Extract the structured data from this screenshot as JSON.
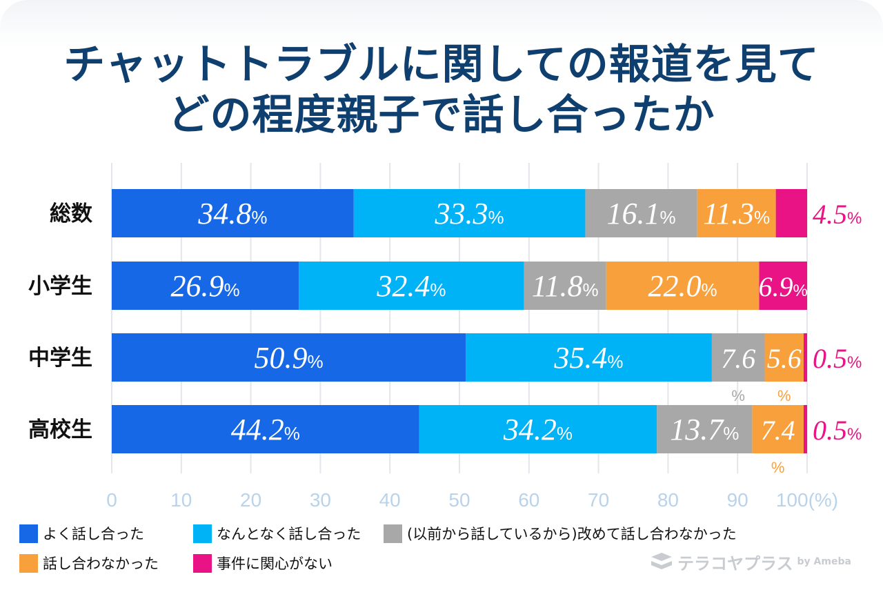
{
  "title_lines": [
    "チャットトラブルに関しての報道を見て",
    "どの程度親子で話し合ったか"
  ],
  "chart_data": {
    "type": "bar",
    "orientation": "horizontal",
    "stacked": true,
    "categories": [
      "総数",
      "小学生",
      "中学生",
      "高校生"
    ],
    "series": [
      {
        "name": "よく話し合った",
        "color": "#1768e6",
        "values": [
          34.8,
          26.9,
          50.9,
          44.2
        ],
        "labels": [
          "34.8",
          "26.9",
          "50.9",
          "44.2"
        ]
      },
      {
        "name": "なんとなく話し合った",
        "color": "#00b2f6",
        "values": [
          33.3,
          32.4,
          35.4,
          34.2
        ],
        "labels": [
          "33.3",
          "32.4",
          "35.4",
          "34.2"
        ]
      },
      {
        "name": "(以前から話しているから)改めて話し合わなかった",
        "color": "#a8a8a8",
        "values": [
          16.1,
          11.8,
          7.6,
          13.7
        ],
        "labels": [
          "16.1",
          "11.8",
          "7.6",
          "13.7"
        ]
      },
      {
        "name": "話し合わなかった",
        "color": "#f8a03c",
        "values": [
          11.3,
          22.0,
          5.6,
          7.4
        ],
        "labels": [
          "11.3",
          "22.0",
          "5.6",
          "7.4"
        ]
      },
      {
        "name": "事件に関心がない",
        "color": "#ea1386",
        "values": [
          4.5,
          6.9,
          0.5,
          0.5
        ],
        "labels": [
          "4.5",
          "6.9",
          "0.5",
          "0.5"
        ]
      }
    ],
    "percent_sign": "%",
    "x_ticks": [
      "0",
      "10",
      "20",
      "30",
      "40",
      "50",
      "60",
      "70",
      "80",
      "90",
      "100(%)"
    ],
    "xlim": [
      0,
      100
    ],
    "grid": true,
    "legend_position": "bottom"
  },
  "logo": {
    "text": "テラコヤプラス",
    "sub": "by Ameba"
  },
  "colors": {
    "title": "#0f3f6e",
    "axis_text": "#b9d3ea",
    "grid": "#e3e6ea"
  }
}
